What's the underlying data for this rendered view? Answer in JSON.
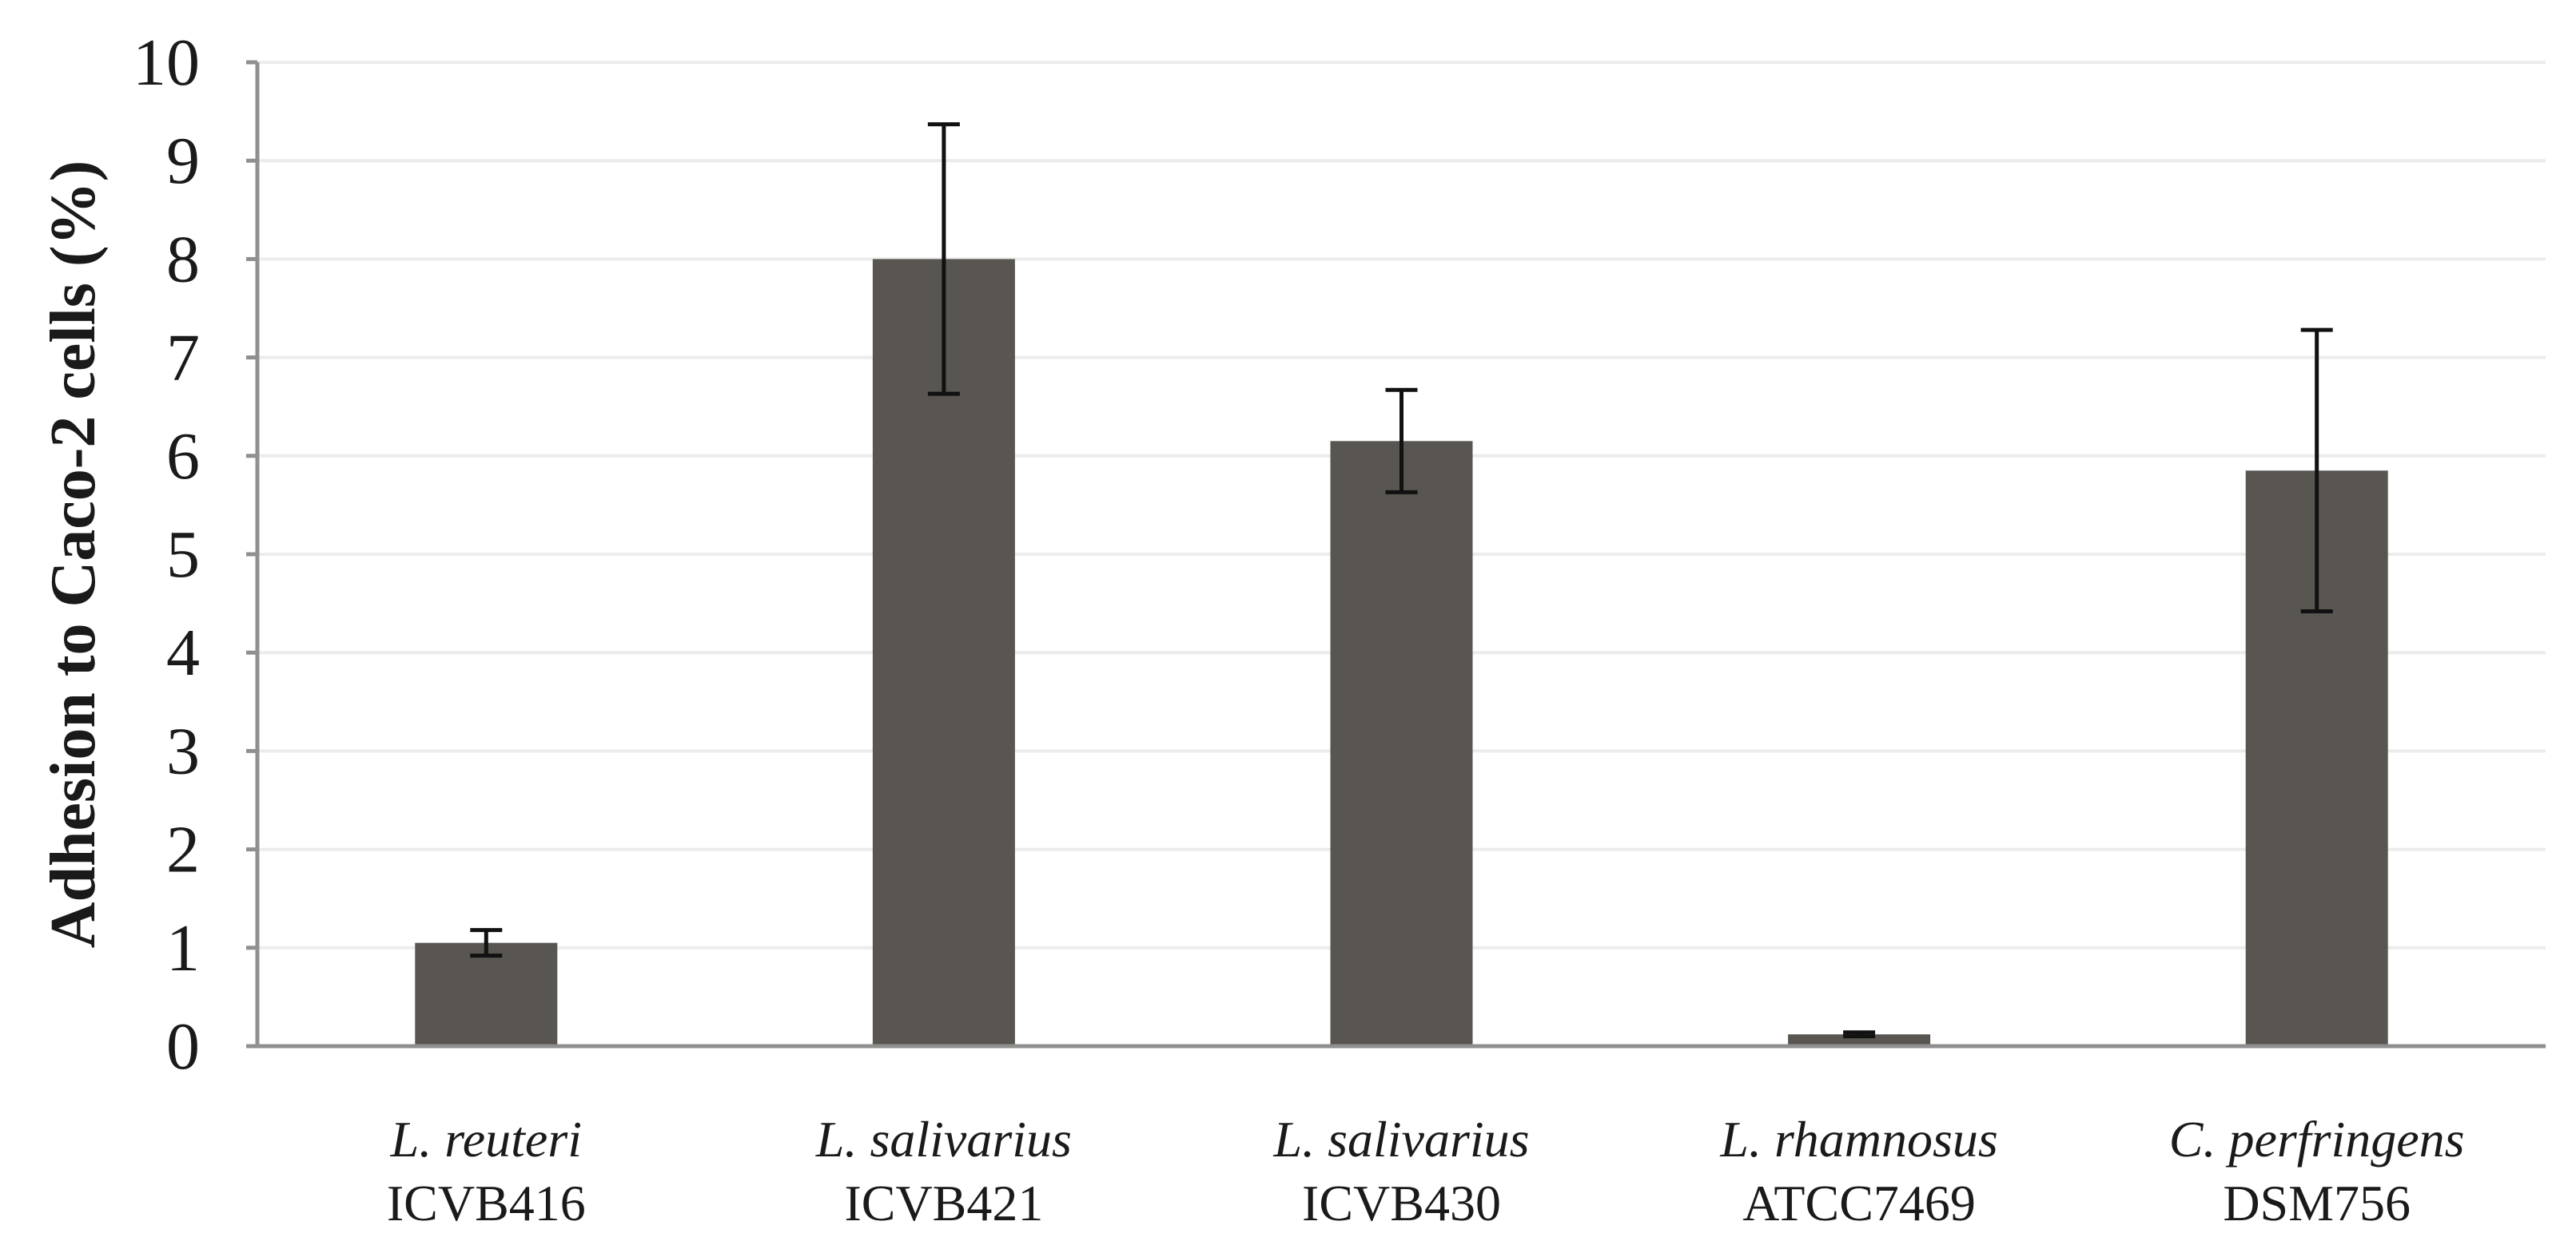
{
  "chart_data": {
    "type": "bar",
    "title": "",
    "xlabel": "",
    "ylabel": "Adhesion to Caco-2 cells (%)",
    "ylim": [
      0,
      10
    ],
    "yticks": [
      0,
      1,
      2,
      3,
      4,
      5,
      6,
      7,
      8,
      9,
      10
    ],
    "grid": true,
    "categories": [
      {
        "species": "L. reuteri",
        "strain": "ICVB416"
      },
      {
        "species": "L. salivarius",
        "strain": "ICVB421"
      },
      {
        "species": "L. salivarius",
        "strain": "ICVB430"
      },
      {
        "species": "L. rhamnosus",
        "strain": "ATCC7469"
      },
      {
        "species": "C. perfringens",
        "strain": "DSM756"
      }
    ],
    "values": [
      1.05,
      8.0,
      6.15,
      0.12,
      5.85
    ],
    "error": [
      0.13,
      1.37,
      0.52,
      0.02,
      1.43
    ],
    "colors": {
      "bar": "#595550",
      "grid": "#ececec",
      "axis": "#8f8f8f",
      "errorbar": "#111111"
    }
  }
}
